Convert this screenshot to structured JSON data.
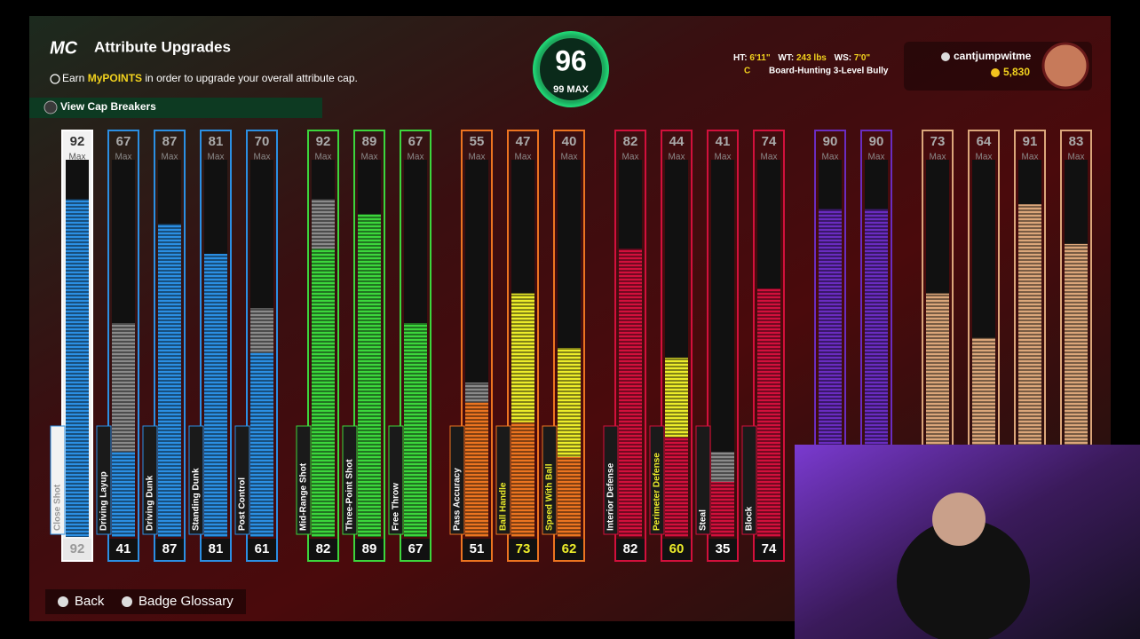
{
  "header": {
    "logo": "MC",
    "title": "Attribute Upgrades",
    "info": {
      "prefix": "Earn",
      "highlight": "MyPOINTS",
      "suffix": "in order to upgrade your overall attribute cap."
    },
    "cap_breakers_button": "View Cap Breakers"
  },
  "overall": {
    "value": "96",
    "max_label": "99 MAX"
  },
  "player": {
    "height_label": "HT:",
    "height": "6'11\"",
    "weight_label": "WT:",
    "weight": "243 lbs",
    "wingspan_label": "WS:",
    "wingspan": "7'0\"",
    "position": "C",
    "build": "Board-Hunting 3-Level Bully"
  },
  "user": {
    "name": "cantjumpwitme",
    "currency": "5,830"
  },
  "max_label": "Max",
  "groups": [
    {
      "color": "#2b8fe3",
      "attributes": [
        {
          "name": "Close Shot",
          "max": "92",
          "current": "92"
        },
        {
          "name": "Driving Layup",
          "max": "67",
          "current": "41"
        },
        {
          "name": "Driving Dunk",
          "max": "87",
          "current": "87"
        },
        {
          "name": "Standing Dunk",
          "max": "81",
          "current": "81"
        },
        {
          "name": "Post Control",
          "max": "70",
          "current": "61"
        }
      ]
    },
    {
      "color": "#3cd63c",
      "attributes": [
        {
          "name": "Mid-Range Shot",
          "max": "92",
          "current": "82"
        },
        {
          "name": "Three-Point Shot",
          "max": "89",
          "current": "89"
        },
        {
          "name": "Free Throw",
          "max": "67",
          "current": "67"
        }
      ]
    },
    {
      "color": "#ec7420",
      "attributes": [
        {
          "name": "Pass Accuracy",
          "max": "55",
          "current": "51"
        },
        {
          "name": "Ball Handle",
          "max": "47",
          "current": "73"
        },
        {
          "name": "Speed With Ball",
          "max": "40",
          "current": "62"
        }
      ]
    },
    {
      "color": "#d2103c",
      "attributes": [
        {
          "name": "Interior Defense",
          "max": "82",
          "current": "82"
        },
        {
          "name": "Perimeter Defense",
          "max": "44",
          "current": "60"
        },
        {
          "name": "Steal",
          "max": "41",
          "current": "35"
        },
        {
          "name": "Block",
          "max": "74",
          "current": "74"
        }
      ]
    },
    {
      "color": "#6a2cc0",
      "attributes": [
        {
          "max": "90"
        },
        {
          "max": "90"
        }
      ]
    },
    {
      "color": "#dba67a",
      "attributes": [
        {
          "max": "73"
        },
        {
          "max": "64"
        },
        {
          "max": "91"
        },
        {
          "max": "83"
        }
      ]
    }
  ],
  "footer": {
    "back": "Back",
    "badge_glossary": "Badge Glossary"
  }
}
